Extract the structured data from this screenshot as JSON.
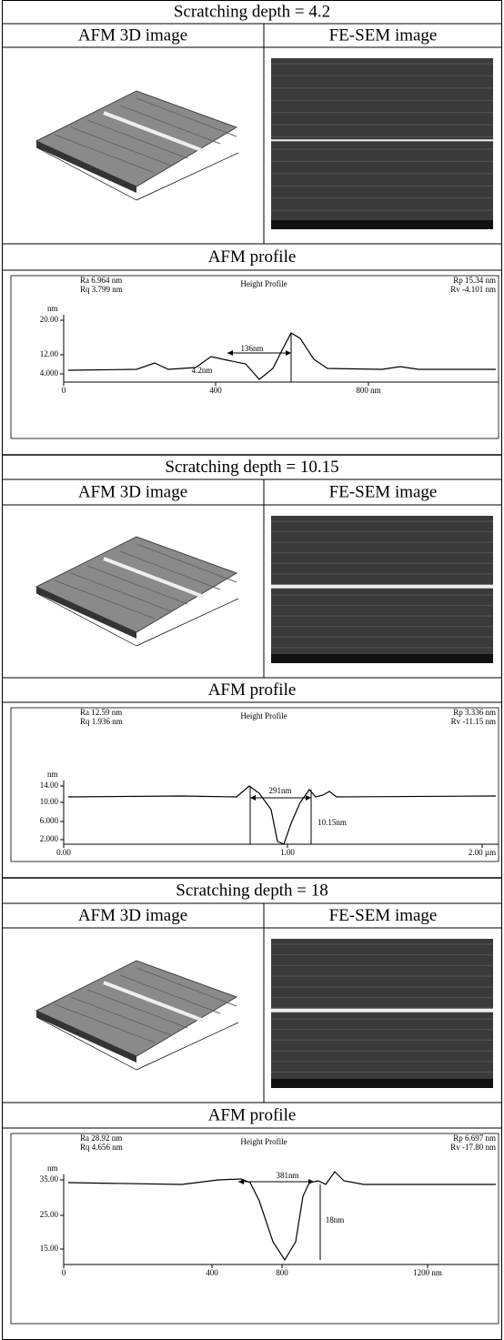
{
  "sections": [
    {
      "title": "Scratching depth = 4.2",
      "columns": [
        "AFM 3D image",
        "FE-SEM image"
      ],
      "profile_title": "AFM profile",
      "profile": {
        "title": "Height Profile",
        "stats_left": [
          "Ra 6.964 nm",
          "Rq 3.799 nm"
        ],
        "stats_right": [
          "Rp 15.34 nm",
          "Rv -4.101 nm"
        ],
        "y_unit": "nm",
        "yticks": [
          "20.00",
          "12.00",
          "4.000"
        ],
        "xticks": [
          "0",
          "400",
          "800 nm"
        ],
        "annotations": [
          "136nm",
          "4.2nm"
        ]
      }
    },
    {
      "title": "Scratching depth = 10.15",
      "columns": [
        "AFM 3D image",
        "FE-SEM image"
      ],
      "profile_title": "AFM profile",
      "profile": {
        "title": "Height Profile",
        "stats_left": [
          "Ra 12.59 nm",
          "Rq 1.936 nm"
        ],
        "stats_right": [
          "Rp 3.336 nm",
          "Rv -11.15 nm"
        ],
        "y_unit": "nm",
        "yticks": [
          "14.00",
          "10.00",
          "6.000",
          "2.000"
        ],
        "xticks": [
          "0.00",
          "1.00",
          "2.00 µm"
        ],
        "annotations": [
          "291nm",
          "10.15nm"
        ]
      }
    },
    {
      "title": "Scratching depth = 18",
      "columns": [
        "AFM 3D image",
        "FE-SEM image"
      ],
      "profile_title": "AFM profile",
      "profile": {
        "title": "Height Profile",
        "stats_left": [
          "Ra 28.92 nm",
          "Rq 4.656 nm"
        ],
        "stats_right": [
          "Rp 6.697 nm",
          "Rv -17.80 nm"
        ],
        "y_unit": "nm",
        "yticks": [
          "35.00",
          "25.00",
          "15.00"
        ],
        "xticks": [
          "0",
          "400",
          "800",
          "1200 nm"
        ],
        "annotations": [
          "381nm",
          "18nm"
        ]
      }
    }
  ]
}
